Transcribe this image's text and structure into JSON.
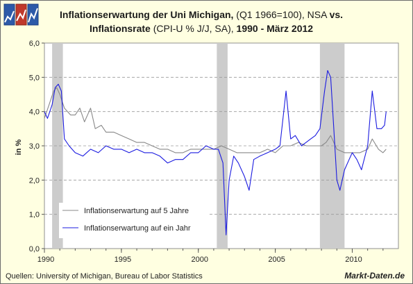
{
  "title": {
    "line1_bold": "Inflationserwartung der Uni Michigan,",
    "line1_normal": " (Q1 1966=100), NSA ",
    "line1_vs": "vs.",
    "line2_bold": "Inflationsrate",
    "line2_normal": " (CPI-U % J/J, SA), ",
    "line2_bold2": "1990 - März 2012"
  },
  "logo": {
    "icon": "chart-logo-icon",
    "colors": [
      "#2d5aa8",
      "#c0392b",
      "#2d5aa8"
    ]
  },
  "source": "Quellen: University of Michigan, Bureau of Labor Statistics",
  "brand": "Markt-Daten.de",
  "chart_data": {
    "type": "line",
    "ylabel": "in %",
    "ylim": [
      0,
      6
    ],
    "yticks": [
      "0,0",
      "1,0",
      "2,0",
      "3,0",
      "4,0",
      "5,0",
      "6,0"
    ],
    "ytick_values": [
      0,
      1,
      2,
      3,
      4,
      5,
      6
    ],
    "xlim": [
      1990.0,
      2013.0
    ],
    "xticks": [
      "1990",
      "1995",
      "2000",
      "2005",
      "2010"
    ],
    "xtick_values": [
      1990,
      1995,
      2000,
      2005,
      2010
    ],
    "grid": "horizontal-dashed",
    "legend_position": "bottom-left",
    "recessions": [
      [
        1990.5,
        1991.2
      ],
      [
        2001.2,
        2001.9
      ],
      [
        2007.9,
        2009.5
      ]
    ],
    "series": [
      {
        "name": "Inflationserwartung auf 5 Jahre",
        "color": "#888888",
        "points": [
          [
            1990.0,
            3.8
          ],
          [
            1990.3,
            4.2
          ],
          [
            1990.6,
            4.6
          ],
          [
            1990.8,
            4.7
          ],
          [
            1991.0,
            4.5
          ],
          [
            1991.3,
            4.1
          ],
          [
            1991.7,
            3.9
          ],
          [
            1992.0,
            3.9
          ],
          [
            1992.3,
            4.1
          ],
          [
            1992.6,
            3.7
          ],
          [
            1993.0,
            4.1
          ],
          [
            1993.3,
            3.5
          ],
          [
            1993.7,
            3.6
          ],
          [
            1994.0,
            3.4
          ],
          [
            1994.5,
            3.4
          ],
          [
            1995.0,
            3.3
          ],
          [
            1995.5,
            3.2
          ],
          [
            1996.0,
            3.1
          ],
          [
            1996.5,
            3.1
          ],
          [
            1997.0,
            3.0
          ],
          [
            1997.5,
            2.9
          ],
          [
            1998.0,
            2.9
          ],
          [
            1998.5,
            2.8
          ],
          [
            1999.0,
            2.8
          ],
          [
            1999.5,
            2.9
          ],
          [
            2000.0,
            2.9
          ],
          [
            2000.5,
            2.9
          ],
          [
            2001.0,
            2.9
          ],
          [
            2001.5,
            3.0
          ],
          [
            2002.0,
            2.9
          ],
          [
            2002.5,
            2.8
          ],
          [
            2003.0,
            2.8
          ],
          [
            2003.5,
            2.8
          ],
          [
            2004.0,
            2.8
          ],
          [
            2004.5,
            2.9
          ],
          [
            2005.0,
            2.8
          ],
          [
            2005.5,
            3.0
          ],
          [
            2006.0,
            3.0
          ],
          [
            2006.5,
            3.1
          ],
          [
            2007.0,
            3.0
          ],
          [
            2007.5,
            3.0
          ],
          [
            2008.0,
            3.0
          ],
          [
            2008.3,
            3.1
          ],
          [
            2008.6,
            3.3
          ],
          [
            2009.0,
            2.9
          ],
          [
            2009.5,
            2.8
          ],
          [
            2010.0,
            2.8
          ],
          [
            2010.5,
            2.8
          ],
          [
            2011.0,
            2.9
          ],
          [
            2011.3,
            3.2
          ],
          [
            2011.7,
            2.9
          ],
          [
            2012.0,
            2.8
          ],
          [
            2012.2,
            2.9
          ]
        ]
      },
      {
        "name": "Inflationserwartung auf ein Jahr",
        "color": "#1b1be0",
        "points": [
          [
            1990.0,
            4.0
          ],
          [
            1990.2,
            3.8
          ],
          [
            1990.5,
            4.2
          ],
          [
            1990.7,
            4.7
          ],
          [
            1990.9,
            4.8
          ],
          [
            1991.1,
            4.6
          ],
          [
            1991.3,
            3.2
          ],
          [
            1991.6,
            3.0
          ],
          [
            1992.0,
            2.8
          ],
          [
            1992.5,
            2.7
          ],
          [
            1993.0,
            2.9
          ],
          [
            1993.5,
            2.8
          ],
          [
            1994.0,
            3.0
          ],
          [
            1994.5,
            2.9
          ],
          [
            1995.0,
            2.9
          ],
          [
            1995.5,
            2.8
          ],
          [
            1996.0,
            2.9
          ],
          [
            1996.5,
            2.8
          ],
          [
            1997.0,
            2.8
          ],
          [
            1997.5,
            2.7
          ],
          [
            1998.0,
            2.5
          ],
          [
            1998.5,
            2.6
          ],
          [
            1999.0,
            2.6
          ],
          [
            1999.5,
            2.8
          ],
          [
            2000.0,
            2.8
          ],
          [
            2000.5,
            3.0
          ],
          [
            2001.0,
            2.9
          ],
          [
            2001.3,
            2.9
          ],
          [
            2001.6,
            2.5
          ],
          [
            2001.8,
            0.4
          ],
          [
            2002.0,
            2.0
          ],
          [
            2002.3,
            2.7
          ],
          [
            2002.6,
            2.5
          ],
          [
            2003.0,
            2.1
          ],
          [
            2003.3,
            1.7
          ],
          [
            2003.6,
            2.6
          ],
          [
            2004.0,
            2.7
          ],
          [
            2004.5,
            2.8
          ],
          [
            2005.0,
            2.9
          ],
          [
            2005.3,
            3.0
          ],
          [
            2005.7,
            4.6
          ],
          [
            2006.0,
            3.2
          ],
          [
            2006.3,
            3.3
          ],
          [
            2006.7,
            3.0
          ],
          [
            2007.0,
            3.1
          ],
          [
            2007.3,
            3.2
          ],
          [
            2007.6,
            3.3
          ],
          [
            2007.9,
            3.5
          ],
          [
            2008.2,
            4.6
          ],
          [
            2008.4,
            5.2
          ],
          [
            2008.6,
            5.0
          ],
          [
            2008.8,
            3.5
          ],
          [
            2009.0,
            2.0
          ],
          [
            2009.2,
            1.7
          ],
          [
            2009.5,
            2.3
          ],
          [
            2009.8,
            2.6
          ],
          [
            2010.0,
            2.8
          ],
          [
            2010.3,
            2.6
          ],
          [
            2010.6,
            2.3
          ],
          [
            2011.0,
            3.0
          ],
          [
            2011.3,
            4.6
          ],
          [
            2011.6,
            3.5
          ],
          [
            2011.9,
            3.5
          ],
          [
            2012.1,
            3.6
          ],
          [
            2012.2,
            4.0
          ]
        ]
      }
    ]
  }
}
